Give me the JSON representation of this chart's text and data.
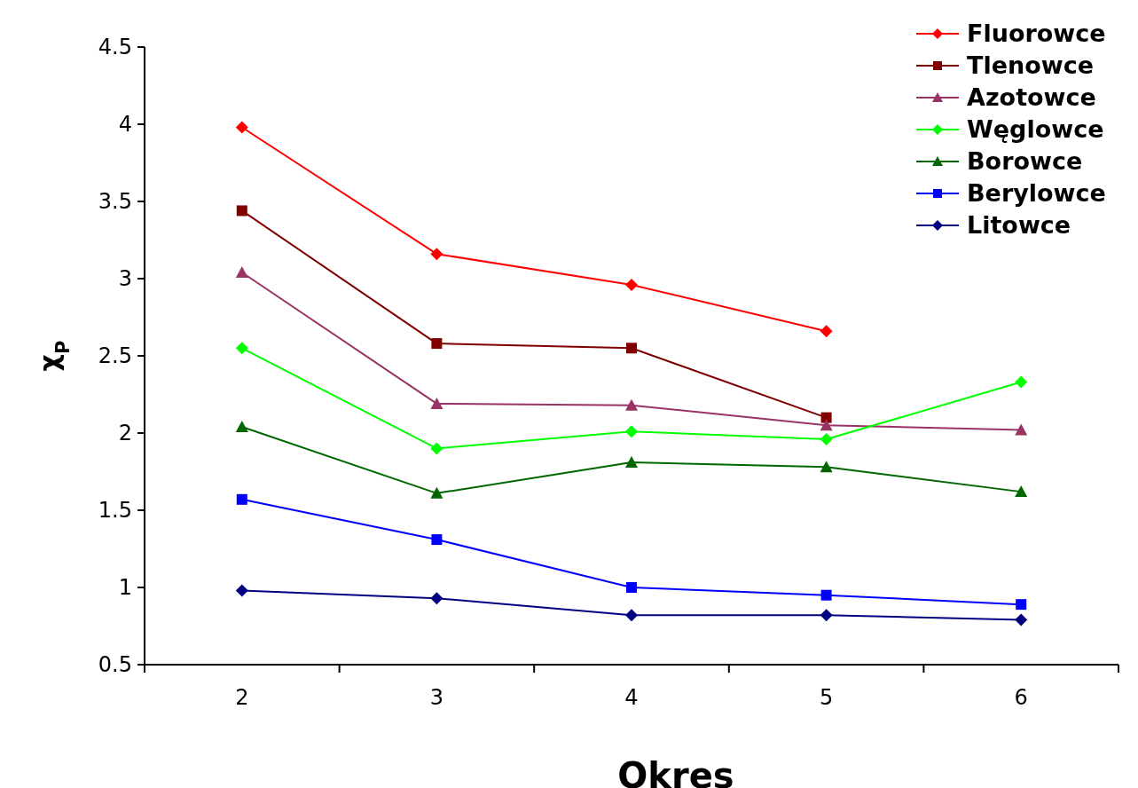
{
  "chart_data": {
    "type": "line",
    "xlabel": "Okres",
    "ylabel": "χ$_{P}$",
    "categories": [
      "2",
      "3",
      "4",
      "5",
      "6"
    ],
    "ylim": [
      0.5,
      4.5
    ],
    "yticks": [
      0.5,
      1,
      1.5,
      2,
      2.5,
      3,
      3.5,
      4,
      4.5
    ],
    "grid": false,
    "legend": "top right",
    "series": [
      {
        "name": "Fluorowce",
        "color": "#ff0000",
        "marker": "diamond",
        "values": [
          3.98,
          3.16,
          2.96,
          2.66,
          null
        ]
      },
      {
        "name": "Tlenowce",
        "color": "#800000",
        "marker": "square",
        "values": [
          3.44,
          2.58,
          2.55,
          2.1,
          null
        ]
      },
      {
        "name": "Azotowce",
        "color": "#993366",
        "marker": "triangle",
        "values": [
          3.04,
          2.19,
          2.18,
          2.05,
          2.02
        ]
      },
      {
        "name": "Węglowce",
        "color": "#00ff00",
        "marker": "diamond",
        "values": [
          2.55,
          1.9,
          2.01,
          1.96,
          2.33
        ]
      },
      {
        "name": "Borowce",
        "color": "#006600",
        "marker": "triangle",
        "values": [
          2.04,
          1.61,
          1.81,
          1.78,
          1.62
        ]
      },
      {
        "name": "Berylowce",
        "color": "#0000ff",
        "marker": "square",
        "values": [
          1.57,
          1.31,
          1.0,
          0.95,
          0.89
        ]
      },
      {
        "name": "Litowce",
        "color": "#000080",
        "marker": "diamond",
        "values": [
          0.98,
          0.93,
          0.82,
          0.82,
          0.79
        ]
      }
    ]
  }
}
